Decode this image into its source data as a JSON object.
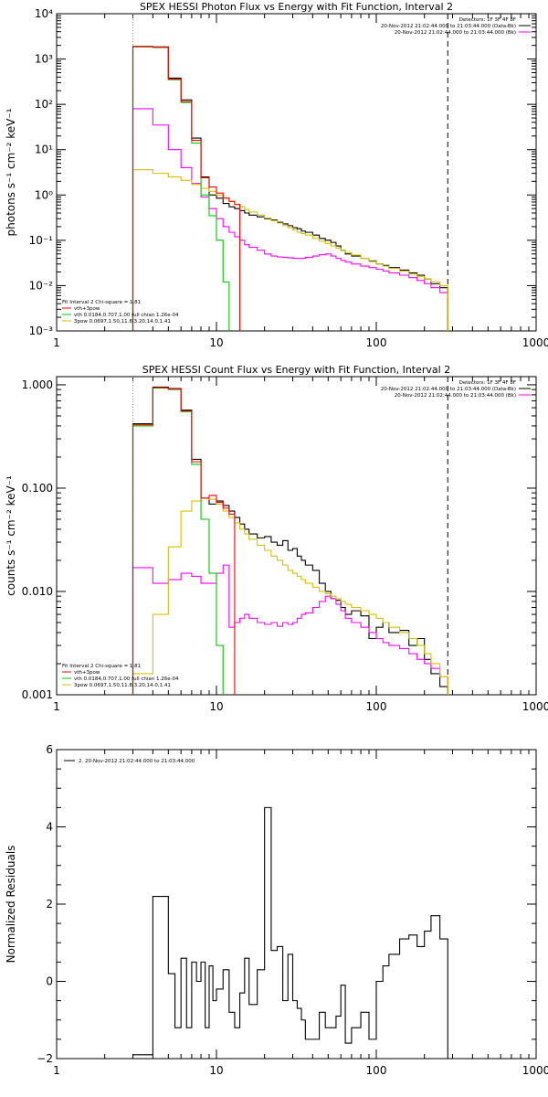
{
  "chart_data": [
    {
      "type": "line",
      "title": "SPEX HESSI Photon Flux vs Energy with Fit Function, Interval 2",
      "xlabel": "",
      "ylabel": "photons s⁻¹ cm⁻² keV⁻¹",
      "xscale": "log",
      "yscale": "log",
      "xlim": [
        1,
        1000
      ],
      "ylim": [
        0.001,
        10000
      ],
      "xticks": [
        1,
        10,
        100,
        1000
      ],
      "xtick_labels": [
        "1",
        "10",
        "100",
        "1000"
      ],
      "yticks": [
        0.001,
        0.01,
        0.1,
        1,
        10,
        100,
        1000,
        10000
      ],
      "ytick_labels": [
        "10⁻³",
        "10⁻²",
        "10⁻¹",
        "10⁰",
        "10¹",
        "10²",
        "10³",
        "10⁴"
      ],
      "vlines": [
        {
          "x": 3.0,
          "style": "dotted",
          "color": "#000000"
        },
        {
          "x": 3.0,
          "style": "dotted",
          "color": "#e08000"
        },
        {
          "x": 280,
          "style": "dashed",
          "color": "#000000"
        }
      ],
      "info": [
        "Detectors: 1F 3F 4F 8F",
        "20-Nov-2012 21:02:44.000 to 21:03:44.000 (Data-Bk)",
        "20-Nov-2012 21:02:44.000 to 21:03:44.000 (Bk)"
      ],
      "info_colors": [
        "#000000",
        "#000000",
        "#ff00ff"
      ],
      "fit_title": "Fit Interval 2   Chi-square = 1.81",
      "legend": [
        {
          "label": "vth+3pow",
          "color": "#ff0000"
        },
        {
          "label": "vth 0.0184,0.707,1.00  full chian 1.26e-04",
          "color": "#00cc00"
        },
        {
          "label": "3pow 0.0697,1.50,11.8,3.20,14.0,1.41",
          "color": "#d8c000"
        }
      ],
      "series": [
        {
          "name": "",
          "color": "#000000",
          "edges": [
            3.0,
            4.0,
            5.0,
            6.0,
            7.0,
            8.0,
            9.0,
            10.0,
            11.0,
            12.0,
            13.0,
            14.0,
            15.0,
            16.0,
            18.0,
            20.0,
            22.0,
            24.0,
            26.0,
            28.0,
            30.0,
            32.0,
            34.0,
            36.0,
            40.0,
            44.0,
            48.0,
            52.0,
            56.0,
            60.0,
            64.0,
            70.0,
            80.0,
            90.0,
            100.0,
            110.0,
            120.0,
            140.0,
            160.0,
            180.0,
            200.0,
            220.0,
            250.0,
            280.0
          ],
          "values": [
            1900,
            1850,
            380,
            125,
            18,
            2.5,
            1.0,
            0.85,
            0.65,
            0.55,
            0.5,
            0.45,
            0.4,
            0.36,
            0.33,
            0.3,
            0.28,
            0.25,
            0.23,
            0.21,
            0.19,
            0.18,
            0.16,
            0.15,
            0.13,
            0.11,
            0.1,
            0.09,
            0.075,
            0.06,
            0.05,
            0.045,
            0.04,
            0.035,
            0.03,
            0.028,
            0.025,
            0.022,
            0.019,
            0.017,
            0.014,
            0.011,
            0.009
          ]
        },
        {
          "name": "",
          "color": "#ff00ff",
          "edges": [
            3.0,
            4.0,
            5.0,
            6.0,
            7.0,
            8.0,
            9.0,
            10.0,
            11.0,
            12.0,
            13.0,
            14.0,
            15.0,
            16.0,
            18.0,
            20.0,
            22.0,
            24.0,
            26.0,
            28.0,
            30.0,
            32.0,
            34.0,
            36.0,
            40.0,
            44.0,
            48.0,
            52.0,
            56.0,
            60.0,
            64.0,
            70.0,
            80.0,
            90.0,
            100.0,
            110.0,
            120.0,
            140.0,
            160.0,
            180.0,
            200.0,
            220.0,
            250.0,
            280.0
          ],
          "values": [
            80,
            35,
            10,
            4.0,
            1.8,
            0.9,
            0.5,
            0.3,
            0.2,
            0.15,
            0.12,
            0.1,
            0.08,
            0.07,
            0.06,
            0.05,
            0.045,
            0.043,
            0.042,
            0.041,
            0.04,
            0.04,
            0.04,
            0.042,
            0.045,
            0.048,
            0.05,
            0.045,
            0.04,
            0.036,
            0.033,
            0.03,
            0.027,
            0.025,
            0.023,
            0.021,
            0.019,
            0.017,
            0.015,
            0.013,
            0.011,
            0.009,
            0.007
          ]
        },
        {
          "name": "",
          "color": "#d8c000",
          "edges": [
            3.0,
            4.0,
            5.0,
            6.0,
            7.0,
            8.0,
            9.0,
            10.0,
            11.0,
            12.0,
            13.0,
            14.0,
            15.0,
            16.0,
            18.0,
            20.0,
            22.0,
            24.0,
            26.0,
            28.0,
            30.0,
            32.0,
            34.0,
            36.0,
            40.0,
            44.0,
            48.0,
            52.0,
            56.0,
            60.0,
            64.0,
            70.0,
            80.0,
            90.0,
            100.0,
            110.0,
            120.0,
            140.0,
            160.0,
            180.0,
            200.0,
            220.0,
            250.0,
            280.0
          ],
          "values": [
            3.6,
            3.0,
            2.5,
            2.1,
            1.7,
            1.4,
            1.2,
            1.0,
            0.85,
            0.72,
            0.62,
            0.55,
            0.48,
            0.42,
            0.36,
            0.31,
            0.27,
            0.24,
            0.21,
            0.19,
            0.17,
            0.15,
            0.14,
            0.13,
            0.11,
            0.095,
            0.085,
            0.075,
            0.067,
            0.06,
            0.054,
            0.047,
            0.04,
            0.034,
            0.03,
            0.027,
            0.024,
            0.021,
            0.018,
            0.016,
            0.014,
            0.012,
            0.01
          ]
        },
        {
          "name": "",
          "color": "#00cc00",
          "edges": [
            3.0,
            4.0,
            5.0,
            6.0,
            7.0,
            8.0,
            9.0,
            10.0,
            11.0,
            12.0
          ],
          "values": [
            1850,
            1800,
            350,
            110,
            14,
            1.0,
            0.35,
            0.1,
            0.012
          ]
        },
        {
          "name": "",
          "color": "#ff0000",
          "edges": [
            3.0,
            4.0,
            5.0,
            6.0,
            7.0,
            8.0,
            9.0,
            10.0,
            11.0,
            12.0,
            13.0,
            14.0
          ],
          "values": [
            1880,
            1820,
            360,
            115,
            16,
            2.4,
            1.5,
            1.1,
            0.86,
            0.72,
            0.62
          ]
        }
      ]
    },
    {
      "type": "line",
      "title": "SPEX HESSI Count Flux vs Energy with Fit Function, Interval 2",
      "xlabel": "",
      "ylabel": "counts s⁻¹ cm⁻² keV⁻¹",
      "xscale": "log",
      "yscale": "log",
      "xlim": [
        1,
        1000
      ],
      "ylim": [
        0.001,
        1.2
      ],
      "xticks": [
        1,
        10,
        100,
        1000
      ],
      "xtick_labels": [
        "1",
        "10",
        "100",
        "1000"
      ],
      "yticks": [
        0.001,
        0.01,
        0.1,
        1
      ],
      "ytick_labels": [
        "0.001",
        "0.010",
        "0.100",
        "1.000"
      ],
      "vlines": [
        {
          "x": 3.0,
          "style": "dotted",
          "color": "#000000"
        },
        {
          "x": 3.0,
          "style": "dotted",
          "color": "#e08000"
        },
        {
          "x": 280,
          "style": "dashed",
          "color": "#000000"
        }
      ],
      "info": [
        "Detectors: 1F 3F 4F 8F",
        "20-Nov-2012 21:02:44.000 to 21:03:44.000 (Data-Bk)",
        "20-Nov-2012 21:02:44.000 to 21:03:44.000 (Bk)"
      ],
      "info_colors": [
        "#000000",
        "#000000",
        "#ff00ff"
      ],
      "fit_title": "Fit Interval 2   Chi-square = 1.81",
      "legend": [
        {
          "label": "vth+3pow",
          "color": "#ff0000"
        },
        {
          "label": "vth 0.0184,0.707,1.00  full chian 1.26e-04",
          "color": "#00cc00"
        },
        {
          "label": "3pow 0.0697,1.50,11.8,3.20,14.0,1.41",
          "color": "#d8c000"
        }
      ],
      "series": [
        {
          "name": "",
          "color": "#000000",
          "edges": [
            3.0,
            4.0,
            5.0,
            6.0,
            7.0,
            8.0,
            9.0,
            10.0,
            11.0,
            12.0,
            13.0,
            14.0,
            15.0,
            16.0,
            18.0,
            20.0,
            22.0,
            24.0,
            26.0,
            28.0,
            30.0,
            32.0,
            34.0,
            36.0,
            40.0,
            44.0,
            48.0,
            52.0,
            56.0,
            60.0,
            64.0,
            70.0,
            80.0,
            90.0,
            100.0,
            110.0,
            120.0,
            140.0,
            160.0,
            180.0,
            200.0,
            220.0,
            250.0,
            280.0
          ],
          "values": [
            0.42,
            0.95,
            0.92,
            0.57,
            0.19,
            0.08,
            0.07,
            0.075,
            0.068,
            0.06,
            0.052,
            0.045,
            0.04,
            0.036,
            0.033,
            0.034,
            0.03,
            0.028,
            0.031,
            0.025,
            0.026,
            0.022,
            0.02,
            0.018,
            0.016,
            0.012,
            0.01,
            0.0085,
            0.0082,
            0.007,
            0.006,
            0.0065,
            0.0058,
            0.0035,
            0.0045,
            0.005,
            0.004,
            0.0042,
            0.003,
            0.0035,
            0.0022,
            0.0016,
            0.0012
          ]
        },
        {
          "name": "",
          "color": "#ff00ff",
          "edges": [
            3.0,
            4.0,
            5.0,
            6.0,
            7.0,
            8.0,
            9.0,
            10.0,
            11.0,
            12.0,
            13.0,
            14.0,
            15.0,
            16.0,
            18.0,
            20.0,
            22.0,
            24.0,
            26.0,
            28.0,
            30.0,
            32.0,
            34.0,
            36.0,
            40.0,
            44.0,
            48.0,
            52.0,
            56.0,
            60.0,
            64.0,
            70.0,
            80.0,
            90.0,
            100.0,
            110.0,
            120.0,
            140.0,
            160.0,
            180.0,
            200.0,
            220.0,
            250.0,
            280.0
          ],
          "values": [
            0.017,
            0.012,
            0.013,
            0.015,
            0.014,
            0.012,
            0.012,
            0.015,
            0.018,
            0.0045,
            0.005,
            0.0055,
            0.006,
            0.0055,
            0.005,
            0.0048,
            0.005,
            0.0046,
            0.005,
            0.0048,
            0.005,
            0.0055,
            0.006,
            0.0062,
            0.007,
            0.008,
            0.009,
            0.0085,
            0.0075,
            0.0065,
            0.0055,
            0.005,
            0.0045,
            0.004,
            0.0035,
            0.0032,
            0.003,
            0.0028,
            0.0025,
            0.0022,
            0.002,
            0.0018,
            0.0015
          ]
        },
        {
          "name": "",
          "color": "#d8c000",
          "edges": [
            3.0,
            4.0,
            5.0,
            6.0,
            7.0,
            8.0,
            9.0,
            10.0,
            11.0,
            12.0,
            13.0,
            14.0,
            15.0,
            16.0,
            18.0,
            20.0,
            22.0,
            24.0,
            26.0,
            28.0,
            30.0,
            32.0,
            34.0,
            36.0,
            40.0,
            44.0,
            48.0,
            52.0,
            56.0,
            60.0,
            64.0,
            70.0,
            80.0,
            90.0,
            100.0,
            110.0,
            120.0,
            140.0,
            160.0,
            180.0,
            200.0,
            220.0,
            250.0,
            280.0
          ],
          "values": [
            0.0016,
            0.006,
            0.027,
            0.06,
            0.075,
            0.08,
            0.078,
            0.07,
            0.06,
            0.052,
            0.046,
            0.04,
            0.036,
            0.032,
            0.028,
            0.025,
            0.022,
            0.02,
            0.018,
            0.016,
            0.015,
            0.014,
            0.013,
            0.012,
            0.011,
            0.01,
            0.0095,
            0.009,
            0.0085,
            0.008,
            0.0075,
            0.007,
            0.0065,
            0.006,
            0.0055,
            0.005,
            0.0045,
            0.004,
            0.0035,
            0.003,
            0.0025,
            0.002,
            0.0015
          ]
        },
        {
          "name": "",
          "color": "#00cc00",
          "edges": [
            3.0,
            4.0,
            5.0,
            6.0,
            7.0,
            8.0,
            9.0,
            10.0,
            11.0,
            12.0
          ],
          "values": [
            0.4,
            0.93,
            0.9,
            0.55,
            0.17,
            0.05,
            0.015,
            0.003,
            0.0008
          ]
        },
        {
          "name": "",
          "color": "#ff0000",
          "edges": [
            3.0,
            4.0,
            5.0,
            6.0,
            7.0,
            8.0,
            9.0,
            10.0,
            11.0,
            12.0,
            13.0
          ],
          "values": [
            0.41,
            0.94,
            0.91,
            0.56,
            0.18,
            0.08,
            0.085,
            0.073,
            0.064,
            0.056
          ]
        }
      ]
    },
    {
      "type": "line",
      "title": "",
      "xlabel": "",
      "ylabel": "Normalized Residuals",
      "xscale": "log",
      "yscale": "linear",
      "xlim": [
        1,
        1000
      ],
      "ylim": [
        -2,
        6
      ],
      "xticks": [
        1,
        10,
        100,
        1000
      ],
      "xtick_labels": [
        "1",
        "10",
        "100",
        "1000"
      ],
      "yticks": [
        -2,
        0,
        2,
        4,
        6
      ],
      "ytick_labels": [
        "−2",
        "0",
        "2",
        "4",
        "6"
      ],
      "legend": [
        {
          "label": "2. 20-Nov-2012 21:02:44.000 to 21:03:44.000",
          "color": "#000000"
        }
      ],
      "series": [
        {
          "name": "",
          "color": "#000000",
          "edges": [
            2.0,
            2.25,
            2.5,
            2.75,
            3.0,
            3.5,
            4.0,
            4.5,
            5.0,
            5.5,
            6.0,
            6.5,
            7.0,
            7.5,
            8.0,
            8.5,
            9.0,
            9.5,
            10.0,
            11.0,
            12.0,
            13.0,
            14.0,
            15.0,
            16.0,
            18.0,
            20.0,
            22.0,
            24.0,
            26.0,
            28.0,
            30.0,
            32.0,
            34.0,
            36.0,
            40.0,
            44.0,
            48.0,
            52.0,
            56.0,
            60.0,
            64.0,
            70.0,
            80.0,
            90.0,
            100.0,
            110.0,
            120.0,
            140.0,
            160.0,
            180.0,
            200.0,
            220.0,
            250.0,
            280.0
          ],
          "values": [
            -2.0,
            -2.0,
            -2.0,
            -2.0,
            -1.9,
            -1.9,
            2.2,
            2.2,
            0.2,
            -1.2,
            0.6,
            -1.2,
            0.5,
            0.0,
            0.5,
            -1.2,
            0.4,
            -0.5,
            -0.2,
            0.3,
            -0.8,
            -1.2,
            -0.3,
            0.6,
            -0.6,
            0.3,
            4.5,
            0.8,
            0.9,
            -0.5,
            0.7,
            -0.5,
            -0.7,
            -1.0,
            -1.5,
            -1.5,
            -0.8,
            -1.2,
            -1.2,
            -0.9,
            -0.1,
            -1.6,
            -1.2,
            -0.8,
            -1.5,
            0.0,
            0.4,
            0.7,
            1.1,
            1.2,
            0.9,
            1.3,
            1.7,
            1.1
          ]
        }
      ]
    }
  ]
}
